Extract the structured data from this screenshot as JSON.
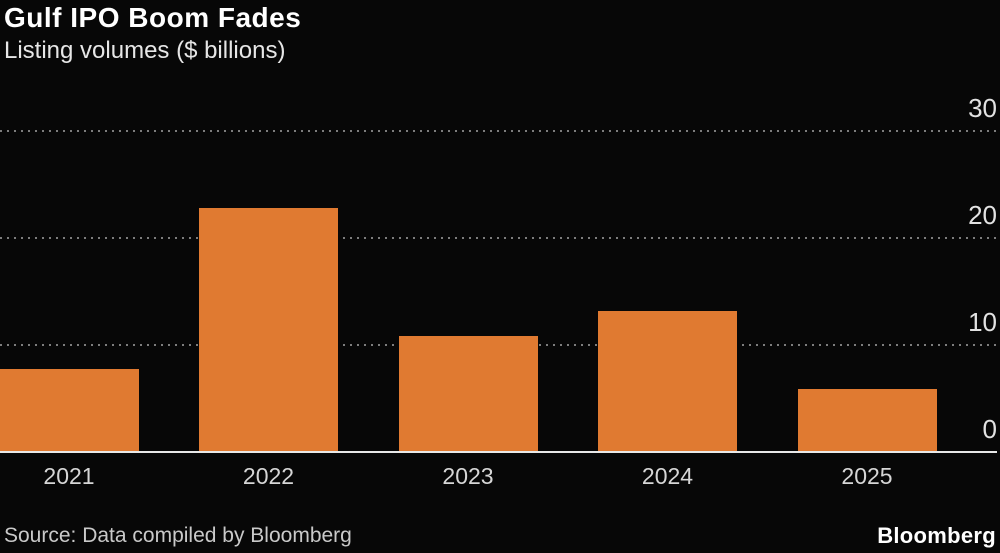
{
  "header": {
    "title": "Gulf IPO Boom Fades",
    "subtitle": "Listing volumes ($ billions)"
  },
  "chart_data": {
    "type": "bar",
    "categories": [
      "2021",
      "2022",
      "2023",
      "2024",
      "2025"
    ],
    "values": [
      7.8,
      22.8,
      10.8,
      13.2,
      5.9
    ],
    "title": "Gulf IPO Boom Fades",
    "subtitle": "Listing volumes ($ billions)",
    "xlabel": "",
    "ylabel": "",
    "ylim": [
      0,
      32
    ],
    "yticks": [
      0,
      10,
      20,
      30
    ],
    "ytick_side": "right",
    "grid": "horizontal-dashed",
    "legend": "none",
    "bar_color": "#e07a31"
  },
  "footer": {
    "source": "Source: Data compiled by Bloomberg",
    "brand": "Bloomberg"
  },
  "colors": {
    "background": "#070707",
    "bar": "#e07a31",
    "axis_line": "#e8e8e8",
    "gridline": "#7d7d7d",
    "title_text": "#ffffff",
    "subtitle_text": "#e6e6e6",
    "tick_text": "#d6d6d6",
    "source_text": "#c9c9c9",
    "brand_text": "#ffffff"
  }
}
